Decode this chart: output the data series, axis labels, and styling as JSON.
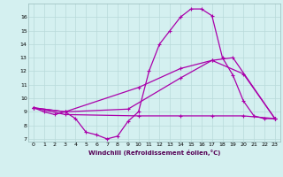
{
  "title": "",
  "xlabel": "Windchill (Refroidissement éolien,°C)",
  "bg_color": "#d4f0f0",
  "grid_color": "#b8dada",
  "line_color": "#aa00aa",
  "xlim": [
    -0.5,
    23.5
  ],
  "ylim": [
    6.8,
    17.0
  ],
  "yticks": [
    7,
    8,
    9,
    10,
    11,
    12,
    13,
    14,
    15,
    16
  ],
  "xticks": [
    0,
    1,
    2,
    3,
    4,
    5,
    6,
    7,
    8,
    9,
    10,
    11,
    12,
    13,
    14,
    15,
    16,
    17,
    18,
    19,
    20,
    21,
    22,
    23
  ],
  "line1_x": [
    0,
    1,
    2,
    3,
    4,
    5,
    6,
    7,
    8,
    9,
    10,
    11,
    12,
    13,
    14,
    15,
    16,
    17,
    18,
    19,
    20,
    21,
    22,
    23
  ],
  "line1_y": [
    9.3,
    9.0,
    8.8,
    9.0,
    8.5,
    7.5,
    7.3,
    7.0,
    7.2,
    8.3,
    9.0,
    12.0,
    14.0,
    15.0,
    16.0,
    16.6,
    16.6,
    16.1,
    13.0,
    11.7,
    9.8,
    8.7,
    8.5,
    8.5
  ],
  "line2_x": [
    0,
    3,
    10,
    14,
    17,
    19,
    23
  ],
  "line2_y": [
    9.3,
    9.0,
    10.8,
    12.2,
    12.8,
    13.0,
    8.5
  ],
  "line3_x": [
    0,
    3,
    9,
    14,
    17,
    20,
    23
  ],
  "line3_y": [
    9.3,
    9.0,
    9.2,
    11.5,
    12.8,
    11.8,
    8.5
  ],
  "line4_x": [
    0,
    3,
    10,
    14,
    17,
    20,
    23
  ],
  "line4_y": [
    9.3,
    8.8,
    8.7,
    8.7,
    8.7,
    8.7,
    8.5
  ]
}
